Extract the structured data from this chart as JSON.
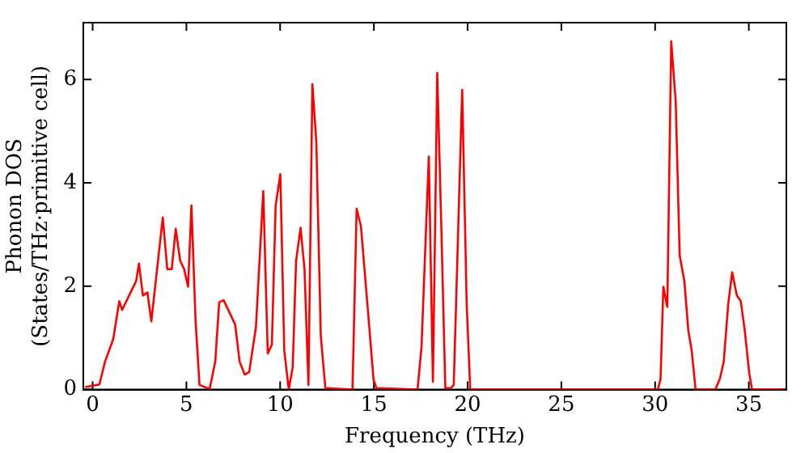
{
  "chart_data": {
    "type": "line",
    "xlabel": "Frequency (THz)",
    "ylabel": "Phonon DOS\n(States/THz·primitive cell)",
    "xlim": [
      -0.5,
      37
    ],
    "ylim": [
      0,
      7.1
    ],
    "xticks": [
      0,
      5,
      10,
      15,
      20,
      25,
      30,
      35
    ],
    "yticks": [
      0,
      2,
      4,
      6
    ],
    "grid": false,
    "legend": false,
    "marker": "none",
    "line_style": "solid",
    "series": [
      {
        "color": "#ff0000",
        "x": [
          -0.4,
          0.36,
          0.66,
          1.1,
          1.42,
          1.57,
          2.32,
          2.47,
          2.68,
          2.92,
          3.13,
          3.74,
          3.98,
          4.22,
          4.43,
          4.67,
          4.88,
          5.09,
          5.27,
          5.49,
          5.7,
          6.24,
          6.54,
          6.75,
          6.99,
          7.6,
          7.84,
          8.11,
          8.35,
          8.71,
          9.1,
          9.34,
          9.56,
          9.76,
          10.01,
          10.22,
          10.46,
          10.67,
          10.85,
          11.09,
          11.3,
          11.51,
          11.72,
          11.93,
          12.17,
          12.41,
          13.86,
          14.08,
          14.31,
          14.68,
          14.98,
          15.13,
          17.33,
          17.54,
          17.93,
          18.15,
          18.38,
          18.6,
          18.81,
          19.11,
          19.26,
          19.71,
          19.95,
          20.14,
          30.14,
          30.29,
          30.44,
          30.65,
          30.86,
          31.1,
          31.31,
          31.56,
          31.77,
          31.95,
          32.16,
          33.21,
          33.45,
          33.66,
          33.9,
          34.11,
          34.36,
          34.57,
          34.78,
          35.02,
          35.17,
          36.9
        ],
        "values": [
          0.05,
          0.1,
          0.54,
          0.98,
          1.71,
          1.54,
          2.1,
          2.44,
          1.82,
          1.88,
          1.32,
          3.33,
          2.33,
          2.33,
          3.11,
          2.49,
          2.33,
          1.99,
          3.56,
          1.32,
          0.09,
          0.01,
          0.54,
          1.69,
          1.73,
          1.26,
          0.54,
          0.29,
          0.34,
          1.21,
          3.84,
          0.7,
          0.87,
          3.56,
          4.17,
          0.76,
          0,
          0.43,
          2.49,
          3.13,
          2.33,
          0.09,
          5.91,
          4.79,
          1.04,
          0.03,
          0,
          3.5,
          3.16,
          1.54,
          0.2,
          0.03,
          0,
          0.82,
          4.51,
          0.15,
          6.13,
          3.11,
          0.03,
          0.03,
          0.09,
          5.8,
          1.65,
          0,
          0,
          0.2,
          1.99,
          1.6,
          6.74,
          5.57,
          2.6,
          2.1,
          1.15,
          0.76,
          0,
          0,
          0.2,
          0.54,
          1.65,
          2.27,
          1.82,
          1.71,
          1.15,
          0.32,
          0,
          0
        ]
      }
    ]
  }
}
